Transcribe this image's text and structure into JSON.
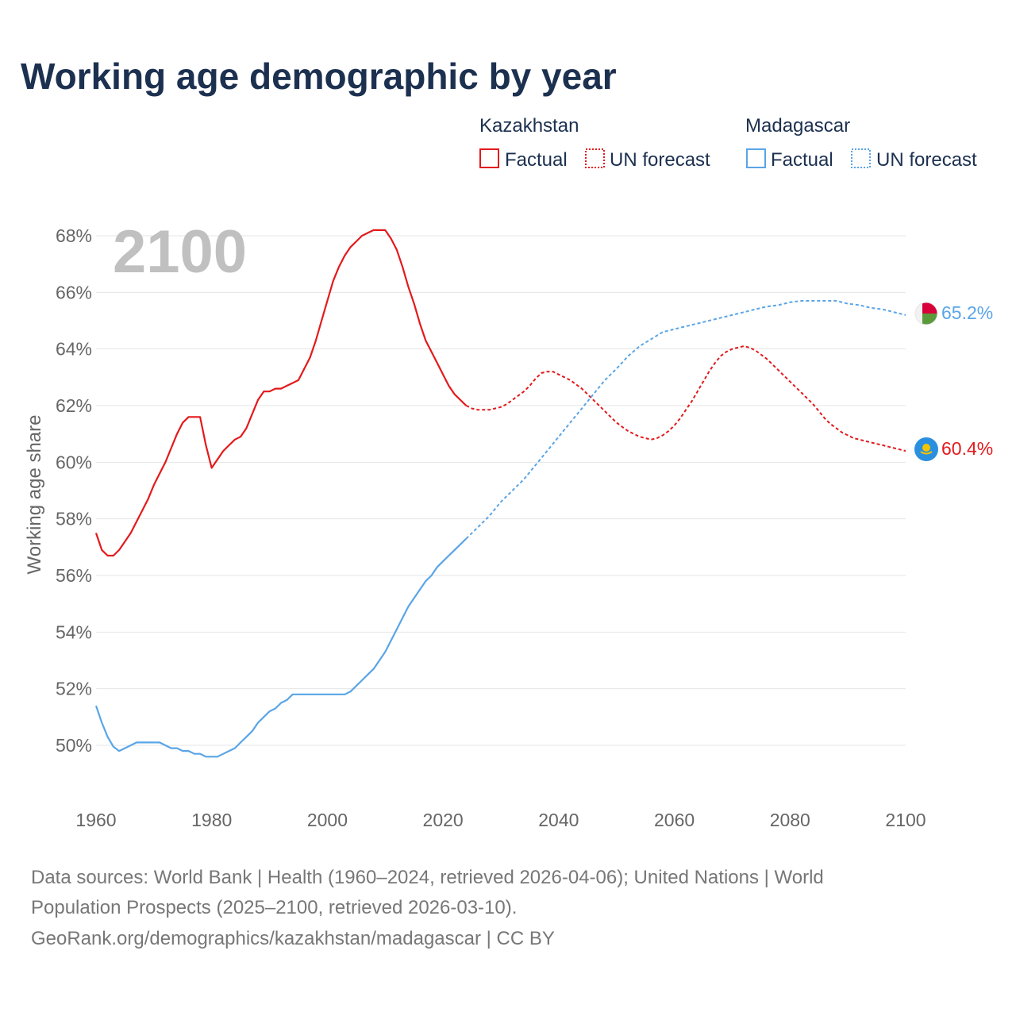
{
  "chart_data": {
    "type": "line",
    "title": "Working age demographic by year",
    "year_label": "2100",
    "ylabel": "Working age share",
    "xlabel": "",
    "xlim": [
      1960,
      2100
    ],
    "ylim": [
      48.5,
      68.5
    ],
    "x_ticks": [
      1960,
      1980,
      2000,
      2020,
      2040,
      2060,
      2080,
      2100
    ],
    "y_ticks": [
      50,
      52,
      54,
      56,
      58,
      60,
      62,
      64,
      66,
      68
    ],
    "x_tick_labels": [
      "1960",
      "1980",
      "2000",
      "2020",
      "2040",
      "2060",
      "2080",
      "2100"
    ],
    "y_tick_labels": [
      "50%",
      "52%",
      "54%",
      "56%",
      "58%",
      "60%",
      "62%",
      "64%",
      "66%",
      "68%"
    ],
    "grid": true,
    "legend": {
      "groups": [
        {
          "country": "Kazakhstan",
          "factual_label": "Factual",
          "forecast_label": "UN forecast",
          "color": "#e31a1c"
        },
        {
          "country": "Madagascar",
          "factual_label": "Factual",
          "forecast_label": "UN forecast",
          "color": "#5aa5e6"
        }
      ]
    },
    "series": [
      {
        "name": "Kazakhstan",
        "color": "#e31a1c",
        "end_label": "60.4%",
        "factual": {
          "x": [
            1960,
            1961,
            1962,
            1963,
            1964,
            1965,
            1966,
            1967,
            1968,
            1969,
            1970,
            1971,
            1972,
            1973,
            1974,
            1975,
            1976,
            1977,
            1978,
            1979,
            1980,
            1981,
            1982,
            1983,
            1984,
            1985,
            1986,
            1987,
            1988,
            1989,
            1990,
            1991,
            1992,
            1993,
            1994,
            1995,
            1996,
            1997,
            1998,
            1999,
            2000,
            2001,
            2002,
            2003,
            2004,
            2005,
            2006,
            2007,
            2008,
            2009,
            2010,
            2011,
            2012,
            2013,
            2014,
            2015,
            2016,
            2017,
            2018,
            2019,
            2020,
            2021,
            2022,
            2023,
            2024
          ],
          "y": [
            57.5,
            56.9,
            56.7,
            56.7,
            56.9,
            57.2,
            57.5,
            57.9,
            58.3,
            58.7,
            59.2,
            59.6,
            60.0,
            60.5,
            61.0,
            61.4,
            61.6,
            61.6,
            61.6,
            60.6,
            59.8,
            60.1,
            60.4,
            60.6,
            60.8,
            60.9,
            61.2,
            61.7,
            62.2,
            62.5,
            62.5,
            62.6,
            62.6,
            62.7,
            62.8,
            62.9,
            63.3,
            63.7,
            64.3,
            65.0,
            65.7,
            66.4,
            66.9,
            67.3,
            67.6,
            67.8,
            68.0,
            68.1,
            68.2,
            68.2,
            68.2,
            67.9,
            67.5,
            66.9,
            66.2,
            65.6,
            64.9,
            64.3,
            63.9,
            63.5,
            63.1,
            62.7,
            62.4,
            62.2,
            62.0
          ]
        },
        "forecast": {
          "x": [
            2024,
            2025,
            2026,
            2027,
            2028,
            2029,
            2030,
            2031,
            2032,
            2033,
            2034,
            2035,
            2036,
            2037,
            2038,
            2039,
            2040,
            2041,
            2042,
            2043,
            2044,
            2045,
            2046,
            2047,
            2048,
            2049,
            2050,
            2051,
            2052,
            2053,
            2054,
            2055,
            2056,
            2057,
            2058,
            2059,
            2060,
            2061,
            2062,
            2063,
            2064,
            2065,
            2066,
            2067,
            2068,
            2069,
            2070,
            2071,
            2072,
            2073,
            2074,
            2075,
            2076,
            2077,
            2078,
            2079,
            2080,
            2081,
            2082,
            2083,
            2084,
            2085,
            2086,
            2087,
            2088,
            2089,
            2090,
            2091,
            2092,
            2093,
            2094,
            2095,
            2096,
            2097,
            2098,
            2099,
            2100
          ],
          "y": [
            62.0,
            61.9,
            61.85,
            61.85,
            61.85,
            61.9,
            61.95,
            62.05,
            62.2,
            62.35,
            62.5,
            62.7,
            62.95,
            63.15,
            63.2,
            63.2,
            63.1,
            63.0,
            62.9,
            62.75,
            62.6,
            62.4,
            62.2,
            62.0,
            61.8,
            61.6,
            61.4,
            61.25,
            61.1,
            61.0,
            60.9,
            60.85,
            60.8,
            60.85,
            60.95,
            61.1,
            61.3,
            61.55,
            61.85,
            62.15,
            62.5,
            62.85,
            63.2,
            63.5,
            63.75,
            63.9,
            64.0,
            64.05,
            64.1,
            64.05,
            63.95,
            63.8,
            63.65,
            63.45,
            63.25,
            63.05,
            62.85,
            62.65,
            62.45,
            62.25,
            62.05,
            61.8,
            61.55,
            61.35,
            61.2,
            61.05,
            60.95,
            60.85,
            60.8,
            60.75,
            60.7,
            60.65,
            60.6,
            60.55,
            60.5,
            60.45,
            60.4
          ]
        }
      },
      {
        "name": "Madagascar",
        "color": "#5aa5e6",
        "end_label": "65.2%",
        "factual": {
          "x": [
            1960,
            1961,
            1962,
            1963,
            1964,
            1965,
            1966,
            1967,
            1968,
            1969,
            1970,
            1971,
            1972,
            1973,
            1974,
            1975,
            1976,
            1977,
            1978,
            1979,
            1980,
            1981,
            1982,
            1983,
            1984,
            1985,
            1986,
            1987,
            1988,
            1989,
            1990,
            1991,
            1992,
            1993,
            1994,
            1995,
            1996,
            1997,
            1998,
            1999,
            2000,
            2001,
            2002,
            2003,
            2004,
            2005,
            2006,
            2007,
            2008,
            2009,
            2010,
            2011,
            2012,
            2013,
            2014,
            2015,
            2016,
            2017,
            2018,
            2019,
            2020,
            2021,
            2022,
            2023,
            2024
          ],
          "y": [
            51.4,
            50.8,
            50.3,
            49.95,
            49.8,
            49.9,
            50.0,
            50.1,
            50.1,
            50.1,
            50.1,
            50.1,
            50.0,
            49.9,
            49.9,
            49.8,
            49.8,
            49.7,
            49.7,
            49.6,
            49.6,
            49.6,
            49.7,
            49.8,
            49.9,
            50.1,
            50.3,
            50.5,
            50.8,
            51.0,
            51.2,
            51.3,
            51.5,
            51.6,
            51.8,
            51.8,
            51.8,
            51.8,
            51.8,
            51.8,
            51.8,
            51.8,
            51.8,
            51.8,
            51.9,
            52.1,
            52.3,
            52.5,
            52.7,
            53.0,
            53.3,
            53.7,
            54.1,
            54.5,
            54.9,
            55.2,
            55.5,
            55.8,
            56.0,
            56.3,
            56.5,
            56.7,
            56.9,
            57.1,
            57.3
          ]
        },
        "forecast": {
          "x": [
            2024,
            2026,
            2028,
            2030,
            2032,
            2034,
            2036,
            2038,
            2040,
            2042,
            2044,
            2046,
            2048,
            2050,
            2052,
            2054,
            2056,
            2058,
            2060,
            2062,
            2064,
            2066,
            2068,
            2070,
            2072,
            2074,
            2076,
            2078,
            2080,
            2082,
            2084,
            2086,
            2088,
            2090,
            2092,
            2094,
            2096,
            2098,
            2100
          ],
          "y": [
            57.3,
            57.7,
            58.1,
            58.6,
            59.0,
            59.4,
            59.9,
            60.4,
            60.9,
            61.4,
            61.9,
            62.4,
            62.9,
            63.3,
            63.75,
            64.1,
            64.35,
            64.6,
            64.7,
            64.8,
            64.9,
            65.0,
            65.1,
            65.2,
            65.3,
            65.4,
            65.5,
            65.55,
            65.65,
            65.7,
            65.7,
            65.7,
            65.7,
            65.6,
            65.55,
            65.45,
            65.4,
            65.3,
            65.2
          ]
        }
      }
    ],
    "sources": [
      "Data sources: World Bank | Health (1960–2024, retrieved 2026-04-06); United Nations | World",
      "Population Prospects (2025–2100, retrieved 2026-03-10).",
      "GeoRank.org/demographics/kazakhstan/madagascar | CC BY"
    ]
  }
}
